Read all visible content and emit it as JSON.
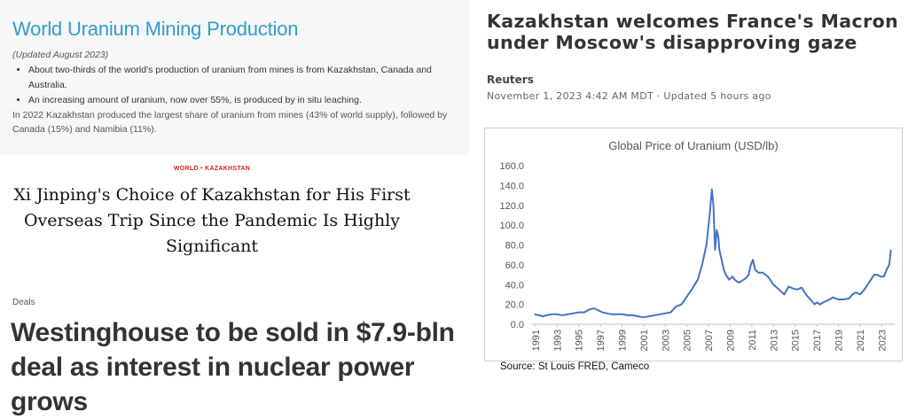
{
  "wna": {
    "title": "World Uranium Mining Production",
    "updated": "(Updated August 2023)",
    "bullets": [
      "About two-thirds of the world's production of uranium from mines is from Kazakhstan, Canada and Australia.",
      "An increasing amount of uranium, now over 55%, is produced by in situ leaching."
    ],
    "paragraph": "In 2022 Kazakhstan produced the largest share of uranium from mines (43% of world supply), followed by Canada (15%) and Namibia (11%).",
    "title_color": "#2f9dd1"
  },
  "xi_article": {
    "kicker": "WORLD • KAZAKHSTAN",
    "headline": "Xi Jinping's Choice of Kazakhstan for His First Overseas Trip Since the Pandemic Is Highly Significant",
    "kicker_color": "#d81e1e"
  },
  "westinghouse": {
    "kicker": "Deals",
    "headline": "Westinghouse to be sold in $7.9-bln deal as interest in nuclear power grows"
  },
  "reuters": {
    "headline": "Kazakhstan welcomes France's Macron under Moscow's disapproving gaze",
    "source": "Reuters",
    "date": "November 1, 2023 4:42 AM MDT · Updated 5 hours ago"
  },
  "chart_data": {
    "type": "line",
    "title": "Global Price of Uranium (USD/lb)",
    "xlabel": "",
    "ylabel": "",
    "ylim": [
      0,
      160
    ],
    "yticks": [
      "160.0",
      "140.0",
      "120.0",
      "100.0",
      "80.0",
      "60.0",
      "40.0",
      "20.0",
      "0.0"
    ],
    "xticks": [
      "1991",
      "1993",
      "1995",
      "1997",
      "1999",
      "2001",
      "2003",
      "2005",
      "2007",
      "2009",
      "2011",
      "2013",
      "2015",
      "2017",
      "2019",
      "2021",
      "2023"
    ],
    "grid": false,
    "line_color": "#4472c4",
    "series": [
      {
        "x": [
          1990.9,
          1991.3,
          1991.7,
          1992.0,
          1992.5,
          1993.0,
          1993.5,
          1994.0,
          1994.5,
          1995.0,
          1995.5,
          1996.0,
          1996.4,
          1996.8,
          1997.2,
          1997.6,
          1998.0,
          1998.5,
          1999.0,
          1999.5,
          2000.0,
          2000.5,
          2001.0,
          2001.5,
          2002.0,
          2002.5,
          2003.0,
          2003.5,
          2004.0,
          2004.5,
          2005.0,
          2005.5,
          2006.0,
          2006.4,
          2006.8,
          2007.1,
          2007.3,
          2007.45,
          2007.6,
          2007.75,
          2007.9,
          2008.0,
          2008.2,
          2008.4,
          2008.6,
          2008.9,
          2009.2,
          2009.5,
          2009.8,
          2010.1,
          2010.4,
          2010.7,
          2010.9,
          2011.1,
          2011.3,
          2011.6,
          2012.0,
          2012.5,
          2013.0,
          2013.5,
          2014.0,
          2014.4,
          2014.8,
          2015.2,
          2015.6,
          2016.0,
          2016.4,
          2016.8,
          2017.0,
          2017.3,
          2017.6,
          2018.0,
          2018.5,
          2019.0,
          2019.5,
          2020.0,
          2020.3,
          2020.6,
          2021.0,
          2021.4,
          2021.7,
          2022.0,
          2022.3,
          2022.6,
          2022.9,
          2023.2,
          2023.5,
          2023.7,
          2023.85
        ],
        "y": [
          10,
          9,
          8,
          9,
          10,
          10,
          9,
          10,
          11,
          12,
          12,
          15,
          16,
          14,
          12,
          11,
          10,
          10,
          10,
          9,
          9,
          8,
          7,
          8,
          9,
          10,
          11,
          12,
          18,
          20,
          28,
          36,
          45,
          60,
          80,
          110,
          136,
          120,
          75,
          95,
          88,
          75,
          65,
          55,
          50,
          45,
          48,
          44,
          42,
          44,
          46,
          50,
          60,
          65,
          55,
          52,
          52,
          48,
          40,
          35,
          30,
          38,
          36,
          35,
          37,
          30,
          25,
          20,
          22,
          20,
          22,
          24,
          27,
          25,
          25,
          26,
          30,
          32,
          30,
          35,
          40,
          45,
          50,
          50,
          48,
          48,
          56,
          60,
          75
        ]
      }
    ]
  },
  "credit": "Source: St Louis FRED, Cameco"
}
